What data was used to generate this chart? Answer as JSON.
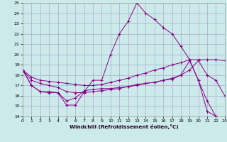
{
  "title": "",
  "xlabel": "Windchill (Refroidissement éolien,°C)",
  "bg_color": "#cceaea",
  "grid_color": "#aaaacc",
  "line_color": "#880088",
  "marker": "+",
  "xlim": [
    0,
    23
  ],
  "ylim": [
    14,
    25
  ],
  "xticks": [
    0,
    1,
    2,
    3,
    4,
    5,
    6,
    7,
    8,
    9,
    10,
    11,
    12,
    13,
    14,
    15,
    16,
    17,
    18,
    19,
    20,
    21,
    22,
    23
  ],
  "yticks": [
    14,
    15,
    16,
    17,
    18,
    19,
    20,
    21,
    22,
    23,
    24,
    25
  ],
  "lines": [
    [
      18.5,
      17.0,
      16.4,
      16.4,
      16.3,
      15.1,
      15.1,
      16.4,
      17.5,
      17.5,
      20.0,
      22.0,
      23.2,
      25.0,
      24.0,
      23.4,
      22.6,
      22.0,
      20.8,
      19.5,
      17.5,
      15.5,
      14.0,
      13.9
    ],
    [
      18.5,
      17.0,
      16.4,
      16.3,
      16.3,
      15.5,
      15.8,
      16.5,
      16.6,
      16.7,
      16.7,
      16.8,
      16.9,
      17.1,
      17.2,
      17.3,
      17.5,
      17.6,
      18.0,
      19.4,
      17.5,
      14.5,
      14.0,
      13.9
    ],
    [
      18.5,
      17.5,
      17.2,
      17.0,
      16.8,
      16.4,
      16.3,
      16.3,
      16.4,
      16.5,
      16.6,
      16.7,
      16.9,
      17.0,
      17.2,
      17.3,
      17.5,
      17.7,
      18.0,
      18.5,
      19.4,
      18.0,
      17.5,
      16.0
    ],
    [
      18.5,
      17.8,
      17.5,
      17.4,
      17.3,
      17.2,
      17.1,
      17.0,
      17.0,
      17.1,
      17.3,
      17.5,
      17.7,
      18.0,
      18.2,
      18.5,
      18.7,
      19.0,
      19.2,
      19.5,
      19.5,
      19.5,
      19.5,
      19.4
    ]
  ]
}
